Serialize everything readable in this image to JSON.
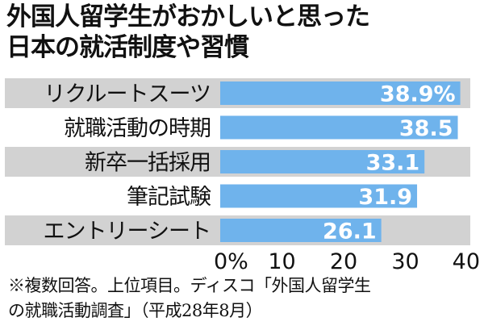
{
  "title": {
    "line1": "外国人留学生がおかしいと思った",
    "line2": "日本の就活制度や習慣"
  },
  "chart_data": {
    "type": "bar",
    "orientation": "horizontal",
    "categories": [
      "リクルートスーツ",
      "就職活動の時期",
      "新卒一括採用",
      "筆記試験",
      "エントリーシート"
    ],
    "values": [
      38.9,
      38.5,
      33.1,
      31.9,
      26.1
    ],
    "value_labels": [
      "38.9%",
      "38.5",
      "33.1",
      "31.9",
      "26.1"
    ],
    "xlim": [
      0,
      40
    ],
    "xticks": [
      0,
      10,
      20,
      30,
      40
    ],
    "xtick_labels": [
      "0%",
      "10",
      "20",
      "30",
      "40"
    ],
    "grid": false,
    "colors": {
      "bar": "#6fb3ec",
      "stripe": "#d2d2d2",
      "value_label": "#ffffff",
      "text": "#111111"
    }
  },
  "footnote": {
    "line1": "※複数回答。上位項目。ディスコ「外国人留学生",
    "line2": "の就職活動調査」（平成28年8月）"
  }
}
